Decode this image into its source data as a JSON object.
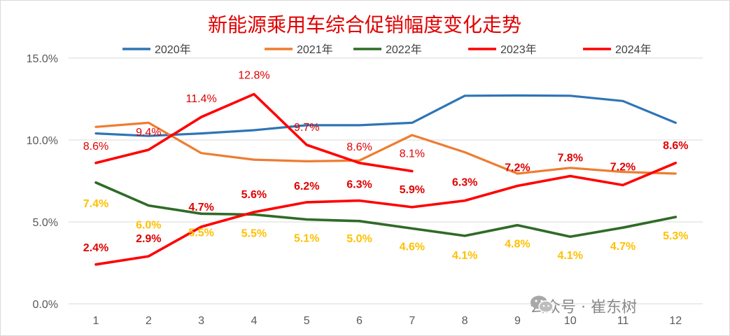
{
  "chart_data": {
    "type": "line",
    "title": "新能源乘用车综合促销幅度变化走势",
    "categories": [
      "1",
      "2",
      "3",
      "4",
      "5",
      "6",
      "7",
      "8",
      "9",
      "10",
      "11",
      "12"
    ],
    "y_ticks": [
      "0.0%",
      "5.0%",
      "10.0%",
      "15.0%"
    ],
    "ylim": [
      0,
      15
    ],
    "grid": true,
    "legend_position": "top",
    "series": [
      {
        "name": "2020年",
        "color": "#2e75b6",
        "values": [
          10.4,
          10.25,
          10.4,
          10.6,
          10.9,
          10.9,
          11.05,
          12.7,
          12.72,
          12.7,
          12.38,
          11.05
        ]
      },
      {
        "name": "2021年",
        "color": "#ed7d31",
        "values": [
          10.8,
          11.05,
          9.2,
          8.8,
          8.7,
          8.75,
          10.3,
          9.25,
          7.95,
          8.3,
          8.05,
          7.95
        ]
      },
      {
        "name": "2022年",
        "color": "#2f6b27",
        "values": [
          7.4,
          6.0,
          5.5,
          5.45,
          5.15,
          5.05,
          4.6,
          4.15,
          4.8,
          4.1,
          4.65,
          5.3
        ],
        "labels": [
          "7.4%",
          "6.0%",
          "5.5%",
          "5.5%",
          "5.1%",
          "5.0%",
          "4.6%",
          "4.1%",
          "4.8%",
          "4.1%",
          "4.7%",
          "5.3%"
        ]
      },
      {
        "name": "2023年",
        "color": "#ff0000",
        "values": [
          2.4,
          2.9,
          4.7,
          5.6,
          6.2,
          6.3,
          5.9,
          6.3,
          7.2,
          7.8,
          7.25,
          8.6
        ],
        "labels": [
          "2.4%",
          "2.9%",
          "4.7%",
          "5.6%",
          "6.2%",
          "6.3%",
          "5.9%",
          "6.3%",
          "7.2%",
          "7.8%",
          "7.2%",
          "8.6%"
        ]
      },
      {
        "name": "2024年",
        "color": "#ff0000",
        "values": [
          8.6,
          9.4,
          11.4,
          12.8,
          9.7,
          8.6,
          8.1,
          null,
          null,
          null,
          null,
          null
        ],
        "labels": [
          "8.6%",
          "9.4%",
          "11.4%",
          "12.8%",
          "9.7%",
          "8.6%",
          "8.1%",
          "",
          "",
          "",
          "",
          ""
        ]
      }
    ]
  },
  "watermark": {
    "text": "公众号 · 崔东树",
    "icon": "wechat-icon"
  }
}
